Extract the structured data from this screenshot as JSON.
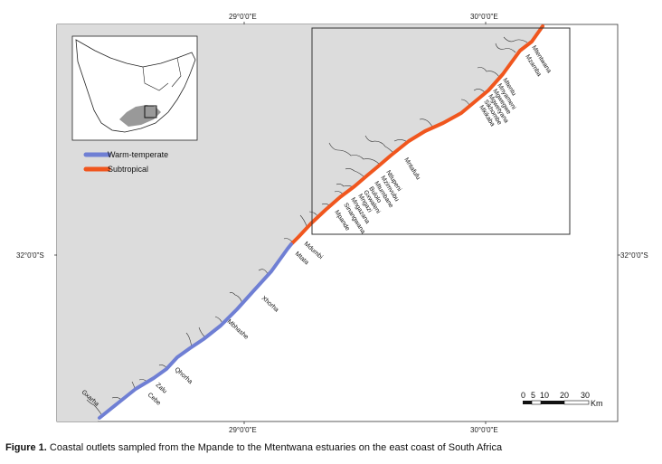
{
  "coordinates": {
    "lon_top_left": "29°0'0\"E",
    "lon_top_right": "30°0'0\"E",
    "lon_bottom_left": "29°0'0\"E",
    "lon_bottom_right": "30°0'0\"E",
    "lat_left": "32°0'0\"S",
    "lat_right": "32°0'0\"S"
  },
  "legend": {
    "warm_label": "Warm-temperate",
    "warm_color": "#6f7fd4",
    "sub_label": "Subtropical",
    "sub_color": "#f0561e"
  },
  "estuaries": {
    "mtentwana": "Mtentwana",
    "mzamba": "Mzamba",
    "mtentu": "Mtentu",
    "mnyameni": "Mnyameni",
    "mgwegwe": "Mgwegwe",
    "mgwetyana": "Mgwetyana",
    "sikhombe": "Sikhombe",
    "mkikaba": "Mkikaba",
    "mbotyi": "Mbotyi",
    "mkozi": "Mkozi",
    "mzintlava": "Mzintlava",
    "mntafufu": "Mntafufu",
    "mzimvubu": "Mzimvubu",
    "ntlupeni": "Ntlupeni",
    "mtumbane": "Mtumbane",
    "mngazana": "Mngazana",
    "mngazi": "Mngazi",
    "bulolo": "Bulolo",
    "gxwaleni": "Gxwaleni",
    "sinangwana": "Sinangwana",
    "mpande": "Mpande",
    "mdumbi": "Mdumbi",
    "mtata": "Mtata",
    "xhorha": "Xhorha",
    "mbhashe": "Mbhashe",
    "qhorha": "Qhorha",
    "zalu": "Zalu",
    "cebe": "Cebe",
    "gxarha": "Gxarha"
  },
  "scale": {
    "t0": "0",
    "t5": "5",
    "t10": "10",
    "t20": "20",
    "t30": "30",
    "unit": "Km"
  },
  "caption": {
    "label": "Figure 1.",
    "text": " Coastal outlets sampled from the Mpande to the Mtentwana estuaries on the east coast of South Africa"
  }
}
